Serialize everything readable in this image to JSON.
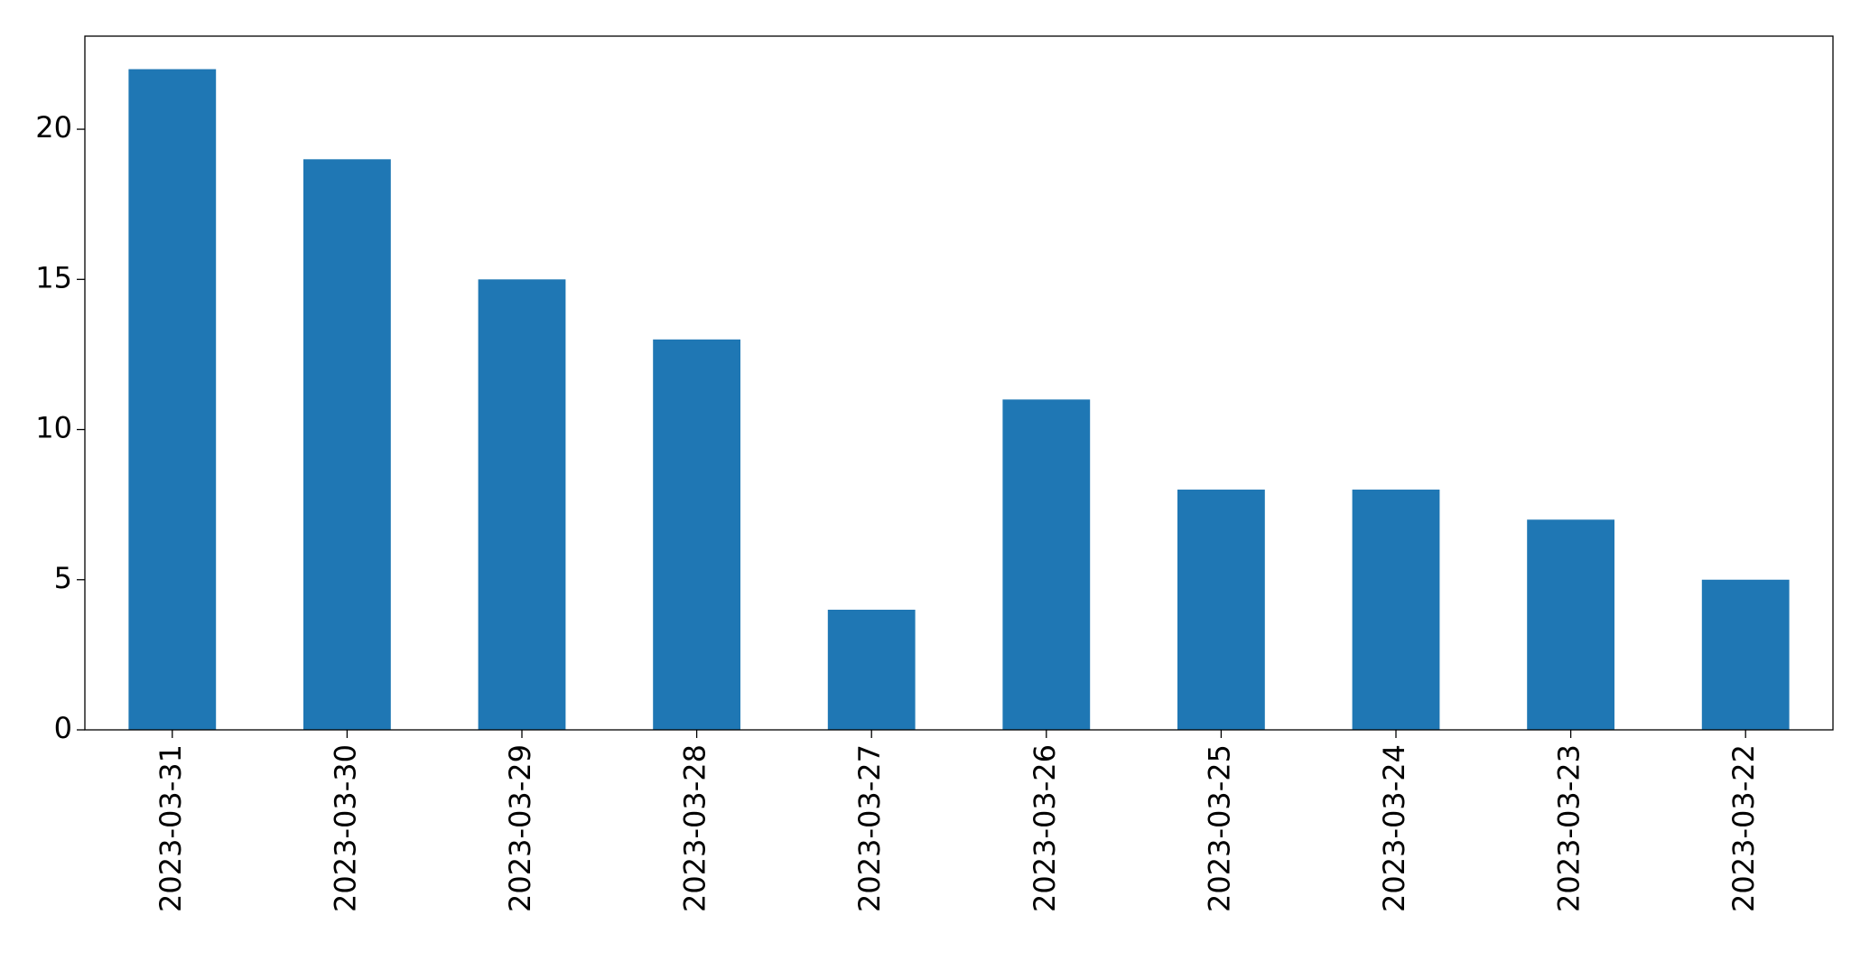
{
  "chart_data": {
    "type": "bar",
    "categories": [
      "2023-03-31",
      "2023-03-30",
      "2023-03-29",
      "2023-03-28",
      "2023-03-27",
      "2023-03-26",
      "2023-03-25",
      "2023-03-24",
      "2023-03-23",
      "2023-03-22"
    ],
    "values": [
      22,
      19,
      15,
      13,
      4,
      11,
      8,
      8,
      7,
      5
    ],
    "color": "#1f77b4",
    "ylim": [
      0,
      23.1
    ],
    "yticks": [
      0,
      5,
      10,
      15,
      20
    ],
    "grid": false
  }
}
